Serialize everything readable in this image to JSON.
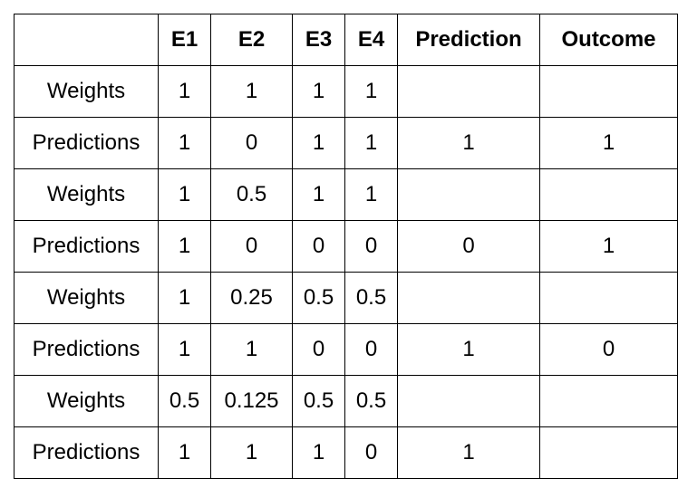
{
  "table": {
    "headers": [
      "",
      "E1",
      "E2",
      "E3",
      "E4",
      "Prediction",
      "Outcome"
    ],
    "rows": [
      [
        "Weights",
        "1",
        "1",
        "1",
        "1",
        "",
        ""
      ],
      [
        "Predictions",
        "1",
        "0",
        "1",
        "1",
        "1",
        "1"
      ],
      [
        "Weights",
        "1",
        "0.5",
        "1",
        "1",
        "",
        ""
      ],
      [
        "Predictions",
        "1",
        "0",
        "0",
        "0",
        "0",
        "1"
      ],
      [
        "Weights",
        "1",
        "0.25",
        "0.5",
        "0.5",
        "",
        ""
      ],
      [
        "Predictions",
        "1",
        "1",
        "0",
        "0",
        "1",
        "0"
      ],
      [
        "Weights",
        "0.5",
        "0.125",
        "0.5",
        "0.5",
        "",
        ""
      ],
      [
        "Predictions",
        "1",
        "1",
        "1",
        "0",
        "1",
        ""
      ]
    ]
  }
}
